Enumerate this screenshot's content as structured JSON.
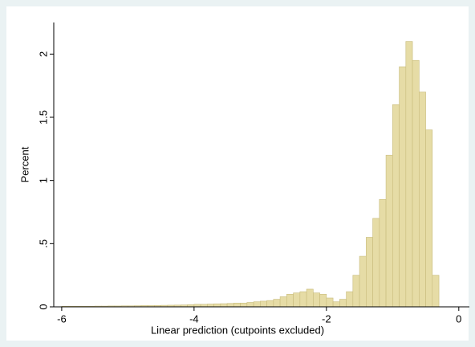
{
  "chart_data": {
    "type": "histogram",
    "x_label": "Linear prediction (cutpoints excluded)",
    "y_label": "Percent",
    "bins": [
      -6.0,
      -5.9,
      -5.8,
      -5.7,
      -5.6,
      -5.5,
      -5.4,
      -5.3,
      -5.2,
      -5.1,
      -5.0,
      -4.9,
      -4.8,
      -4.7,
      -4.6,
      -4.5,
      -4.4,
      -4.3,
      -4.2,
      -4.1,
      -4.0,
      -3.9,
      -3.8,
      -3.7,
      -3.6,
      -3.5,
      -3.4,
      -3.3,
      -3.2,
      -3.1,
      -3.0,
      -2.9,
      -2.8,
      -2.7,
      -2.6,
      -2.5,
      -2.4,
      -2.3,
      -2.2,
      -2.1,
      -2.0,
      -1.9,
      -1.8,
      -1.7,
      -1.6,
      -1.5,
      -1.4,
      -1.3,
      -1.2,
      -1.1,
      -1.0,
      -0.9,
      -0.8,
      -0.7,
      -0.6,
      -0.5,
      -0.4,
      -0.3
    ],
    "values": [
      0.005,
      0.005,
      0.005,
      0.005,
      0.005,
      0.006,
      0.006,
      0.007,
      0.007,
      0.008,
      0.008,
      0.009,
      0.01,
      0.01,
      0.011,
      0.012,
      0.013,
      0.014,
      0.015,
      0.017,
      0.02,
      0.02,
      0.022,
      0.024,
      0.025,
      0.027,
      0.03,
      0.03,
      0.035,
      0.04,
      0.045,
      0.05,
      0.06,
      0.08,
      0.1,
      0.11,
      0.12,
      0.14,
      0.11,
      0.1,
      0.07,
      0.04,
      0.06,
      0.12,
      0.25,
      0.4,
      0.55,
      0.7,
      0.85,
      1.2,
      1.6,
      1.9,
      2.1,
      1.95,
      1.7,
      1.4,
      0.25
    ],
    "color": "#e6dca6",
    "xlim": [
      -6.12,
      0.16
    ],
    "xticks": [
      -6,
      -4,
      -2,
      0
    ],
    "ylim": [
      0,
      2.25
    ],
    "yticks": [
      0,
      {
        "value": 0.5,
        "label": ".5"
      },
      1,
      1.5,
      2
    ]
  }
}
